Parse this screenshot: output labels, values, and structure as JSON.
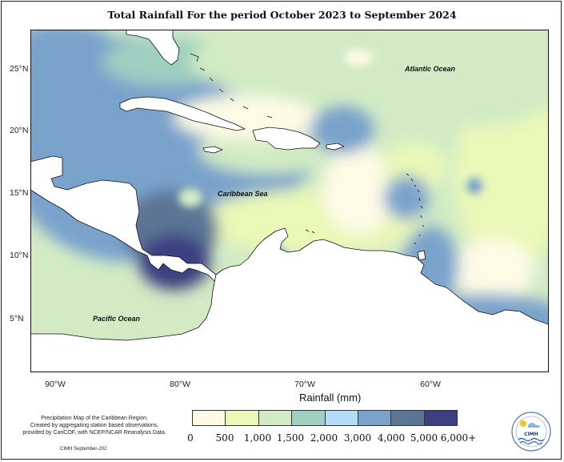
{
  "title": "Total Rainfall For the period October 2023 to September 2024",
  "map": {
    "lat_ticks": [
      "25°N",
      "20°N",
      "15°N",
      "10°N",
      "5°N"
    ],
    "lon_ticks": [
      "90°W",
      "80°W",
      "70°W",
      "60°W"
    ],
    "labels": {
      "atlantic": "Atlantic Ocean",
      "caribbean": "Caribbean Sea",
      "pacific": "Pacific Ocean"
    }
  },
  "legend": {
    "title": "Rainfall (mm)",
    "ticks": [
      "0",
      "500",
      "1,000",
      "1,500",
      "2,000",
      "3,000",
      "4,000",
      "5,000",
      "6,000+"
    ],
    "colors": [
      "#fdfbe6",
      "#eaf8b8",
      "#d2ebc5",
      "#9fcfc0",
      "#b4dcf6",
      "#7aa3cc",
      "#5b7595",
      "#3b3f80"
    ]
  },
  "footnote": {
    "line1": "Precipitation Map of the Caribbean Region.",
    "line2": "Created by aggregating station based observations,",
    "line3": "provided by CariCOF, with NCEP/NCAR Reanalysis Data.",
    "credit": "CIMH September-202"
  },
  "logo": {
    "text": "CIMH"
  }
}
